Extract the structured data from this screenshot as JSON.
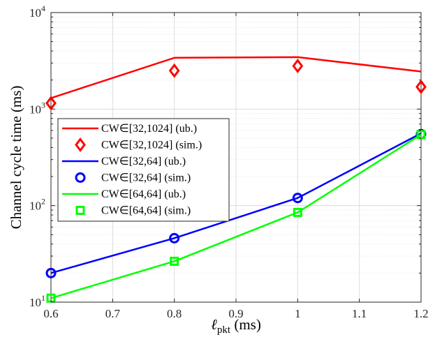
{
  "chart_data": {
    "type": "line",
    "xlabel_symbol": "ℓ",
    "xlabel_sub": "pkt",
    "xlabel_unit": " (ms)",
    "ylabel": "Channel cycle time (ms)",
    "xlim": [
      0.6,
      1.2
    ],
    "ylim": [
      10,
      10000
    ],
    "yscale": "log",
    "x_ticks": [
      0.6,
      0.7,
      0.8,
      0.9,
      1.0,
      1.1,
      1.2
    ],
    "x_tick_labels": [
      "0.6",
      "0.7",
      "0.8",
      "0.9",
      "1",
      "1.1",
      "1.2"
    ],
    "y_ticks": [
      {
        "value": 10,
        "base": "10",
        "exp": "1"
      },
      {
        "value": 100,
        "base": "10",
        "exp": "2"
      },
      {
        "value": 1000,
        "base": "10",
        "exp": "3"
      },
      {
        "value": 10000,
        "base": "10",
        "exp": "4"
      }
    ],
    "grid": true,
    "legend_position": "center-left",
    "series": [
      {
        "name": "CW∈[32,1024] (ub.)",
        "kind": "line",
        "color": "#ff0000",
        "x": [
          0.6,
          0.8,
          1.0,
          1.2
        ],
        "values": [
          1300,
          3400,
          3450,
          2450
        ]
      },
      {
        "name": "CW∈[32,1024] (sim.)",
        "kind": "marker",
        "marker": "diamond",
        "color": "#ff0000",
        "x": [
          0.6,
          0.8,
          1.0,
          1.2
        ],
        "values": [
          1150,
          2500,
          2800,
          1700
        ]
      },
      {
        "name": "CW∈[32,64] (ub.)",
        "kind": "line",
        "color": "#0000ff",
        "x": [
          0.6,
          0.8,
          1.0,
          1.2
        ],
        "values": [
          20,
          46,
          120,
          560
        ]
      },
      {
        "name": "CW∈[32,64] (sim.)",
        "kind": "marker",
        "marker": "circle",
        "color": "#0000ff",
        "x": [
          0.6,
          0.8,
          1.0,
          1.2
        ],
        "values": [
          20,
          46,
          120,
          550
        ]
      },
      {
        "name": "CW∈[64,64] (ub.)",
        "kind": "line",
        "color": "#00ff00",
        "x": [
          0.6,
          0.8,
          1.0,
          1.2
        ],
        "values": [
          11,
          26.5,
          85,
          545
        ]
      },
      {
        "name": "CW∈[64,64] (sim.)",
        "kind": "marker",
        "marker": "square",
        "color": "#00ff00",
        "x": [
          0.6,
          0.8,
          1.0,
          1.2
        ],
        "values": [
          11,
          26.5,
          85,
          545
        ]
      }
    ]
  }
}
